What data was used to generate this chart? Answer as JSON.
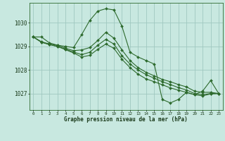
{
  "title": "Graphe pression niveau de la mer (hPa)",
  "background_color": "#c8e8e0",
  "plot_bg_color": "#c8e8e0",
  "grid_color": "#a0c8c0",
  "line_color": "#2d6a2d",
  "marker_color": "#2d6a2d",
  "xlim": [
    -0.5,
    23.5
  ],
  "ylim": [
    1026.3,
    1030.85
  ],
  "yticks": [
    1027,
    1028,
    1029,
    1030
  ],
  "xticks": [
    0,
    1,
    2,
    3,
    4,
    5,
    6,
    7,
    8,
    9,
    10,
    11,
    12,
    13,
    14,
    15,
    16,
    17,
    18,
    19,
    20,
    21,
    22,
    23
  ],
  "series": [
    [
      1029.4,
      1029.4,
      1029.15,
      1029.05,
      1029.0,
      1028.95,
      1029.5,
      1030.1,
      1030.5,
      1030.6,
      1030.55,
      1029.85,
      1028.75,
      1028.55,
      1028.4,
      1028.25,
      1026.75,
      1026.6,
      1026.75,
      1027.05,
      1026.95,
      1027.1,
      1027.55,
      1027.0
    ],
    [
      1029.4,
      1029.2,
      1029.1,
      1029.05,
      1028.92,
      1028.82,
      1028.85,
      1028.95,
      1029.25,
      1029.6,
      1029.35,
      1028.85,
      1028.4,
      1028.1,
      1027.9,
      1027.75,
      1027.6,
      1027.5,
      1027.38,
      1027.28,
      1027.1,
      1027.05,
      1027.05,
      1027.0
    ],
    [
      1029.4,
      1029.18,
      1029.08,
      1029.0,
      1028.88,
      1028.76,
      1028.65,
      1028.75,
      1029.05,
      1029.3,
      1029.1,
      1028.6,
      1028.25,
      1028.0,
      1027.8,
      1027.65,
      1027.5,
      1027.38,
      1027.25,
      1027.15,
      1027.0,
      1026.95,
      1027.0,
      1027.0
    ],
    [
      1029.4,
      1029.18,
      1029.08,
      1029.0,
      1028.86,
      1028.72,
      1028.55,
      1028.62,
      1028.88,
      1029.1,
      1028.92,
      1028.45,
      1028.1,
      1027.82,
      1027.62,
      1027.5,
      1027.37,
      1027.24,
      1027.14,
      1027.05,
      1026.95,
      1026.9,
      1026.98,
      1027.0
    ]
  ]
}
